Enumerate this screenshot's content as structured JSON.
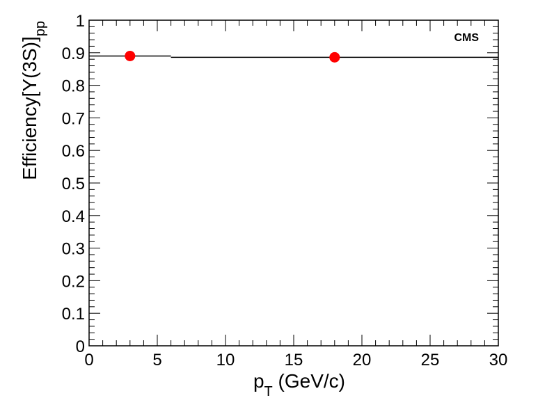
{
  "chart_data": {
    "type": "scatter",
    "title": "",
    "annotation": "CMS",
    "xlabel": "p",
    "xlabel_sub": "T",
    "xlabel_rest": " (GeV/c)",
    "ylabel": "Efficiency[Υ(3S)]",
    "ylabel_sub": "pp",
    "xlim": [
      0,
      30
    ],
    "ylim": [
      0,
      1
    ],
    "xticks": [
      "0",
      "5",
      "10",
      "15",
      "20",
      "25",
      "30"
    ],
    "yticks": [
      "0",
      "0.1",
      "0.2",
      "0.3",
      "0.4",
      "0.5",
      "0.6",
      "0.7",
      "0.8",
      "0.9",
      "1"
    ],
    "grid": false,
    "marker_color": "#ff0000",
    "points": [
      {
        "x": 3,
        "y": 0.89,
        "xerr_low": 0,
        "xerr_high": 6
      },
      {
        "x": 18,
        "y": 0.886,
        "xerr_low": 6,
        "xerr_high": 30
      }
    ]
  }
}
